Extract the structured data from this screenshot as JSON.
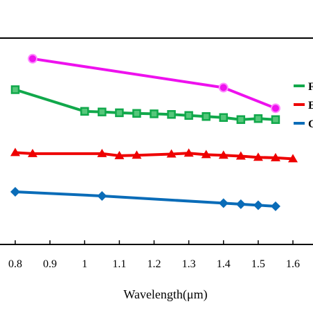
{
  "chart_data": {
    "type": "line",
    "title": "",
    "xlabel": "Wavelength(μm)",
    "ylabel": "",
    "xlim": [
      0.78,
      1.655
    ],
    "ylim": [
      0,
      10
    ],
    "xticks": [
      "0.8",
      "0.9",
      "1",
      "1.1",
      "1.2",
      "1.3",
      "1.4",
      "1.5",
      "1.6"
    ],
    "xtick_values": [
      0.8,
      0.9,
      1.0,
      1.1,
      1.2,
      1.3,
      1.4,
      1.5,
      1.6
    ],
    "grid": false,
    "legend_position": "right",
    "series": [
      {
        "name": "",
        "color": "#ee11ee",
        "marker": "circle",
        "x": [
          0.85,
          1.4,
          1.55
        ],
        "y": [
          9.0,
          7.6,
          6.6
        ]
      },
      {
        "name": "F",
        "color": "#11a84b",
        "marker": "square",
        "x": [
          0.8,
          1.0,
          1.05,
          1.1,
          1.15,
          1.2,
          1.25,
          1.3,
          1.35,
          1.4,
          1.45,
          1.5,
          1.55
        ],
        "y": [
          7.5,
          6.45,
          6.42,
          6.38,
          6.35,
          6.33,
          6.3,
          6.25,
          6.2,
          6.15,
          6.05,
          6.1,
          6.05
        ]
      },
      {
        "name": "E",
        "color": "#ee0000",
        "marker": "triangle",
        "x": [
          0.8,
          0.85,
          1.05,
          1.1,
          1.15,
          1.25,
          1.3,
          1.35,
          1.4,
          1.45,
          1.5,
          1.55,
          1.6
        ],
        "y": [
          4.45,
          4.4,
          4.4,
          4.3,
          4.32,
          4.38,
          4.42,
          4.35,
          4.32,
          4.28,
          4.22,
          4.2,
          4.15
        ]
      },
      {
        "name": "C",
        "color": "#0a6cb8",
        "marker": "diamond",
        "x": [
          0.8,
          1.05,
          1.4,
          1.45,
          1.5,
          1.55
        ],
        "y": [
          2.55,
          2.35,
          2.0,
          1.95,
          1.9,
          1.85
        ]
      }
    ]
  }
}
